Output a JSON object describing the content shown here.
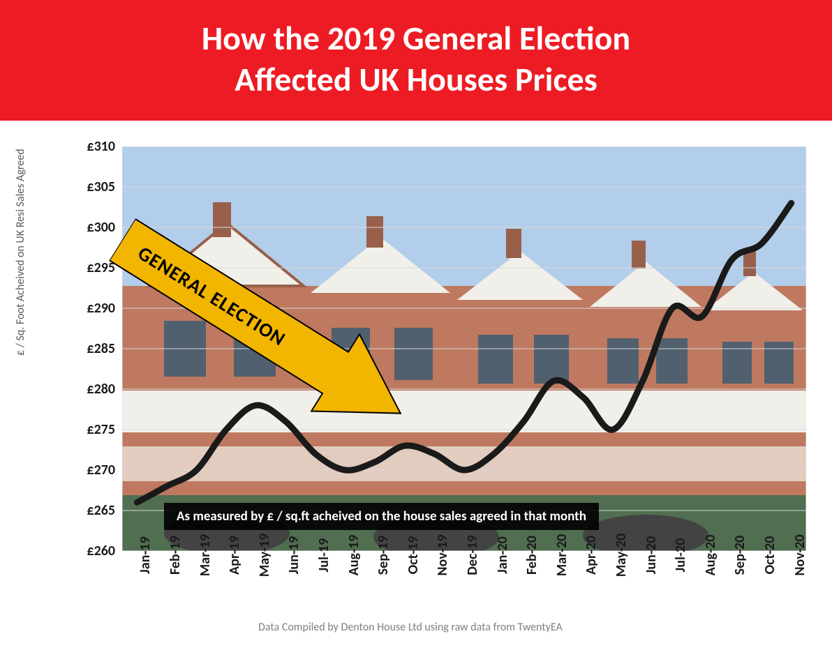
{
  "title": {
    "line1": "How the 2019 General Election",
    "line2": "Affected UK Houses Prices",
    "fontsize": 48,
    "font_weight": "bold",
    "color": "#ffffff",
    "background": "#ed1c24"
  },
  "chart": {
    "type": "line",
    "y_axis_title": "£ / Sq. Foot Acheived on UK Resi Sales Agreed",
    "y_axis_title_fontsize": 16,
    "y_axis_title_color": "#595959",
    "ylim": [
      260,
      310
    ],
    "ytick_step": 5,
    "yticks": [
      260,
      265,
      270,
      275,
      280,
      285,
      290,
      295,
      300,
      305,
      310
    ],
    "ytick_labels": [
      "£260",
      "£265",
      "£270",
      "£275",
      "£280",
      "£285",
      "£290",
      "£295",
      "£300",
      "£305",
      "£310"
    ],
    "ytick_fontsize": 20,
    "ytick_font_weight": "bold",
    "xticks": [
      "Jan-19",
      "Feb-19",
      "Mar-19",
      "Apr-19",
      "May-19",
      "Jun-19",
      "Jul-19",
      "Aug-19",
      "Sep-19",
      "Oct-19",
      "Nov-19",
      "Dec-19",
      "Jan-20",
      "Feb-20",
      "Mar-20",
      "Apr-20",
      "May-20",
      "Jun-20",
      "Jul-20",
      "Aug-20",
      "Sep-20",
      "Oct-20",
      "Nov-20"
    ],
    "xtick_fontsize": 20,
    "xtick_font_weight": "bold",
    "xtick_rotation": -90,
    "values": [
      266,
      268,
      270,
      275,
      278,
      276,
      272,
      270,
      271,
      273,
      272,
      270,
      272,
      276,
      281,
      279,
      275,
      281,
      290,
      289,
      296,
      298,
      303
    ],
    "line_color": "#1a1a1a",
    "line_width": 9,
    "grid_color": "#d9d9d9",
    "grid_on": true,
    "background_photo": true,
    "plot_bg_sky": "#a8c8e8",
    "plot_bg_brick": "#b5674a",
    "plot_bg_white": "#f0ede6"
  },
  "annotation_arrow": {
    "label": "GENERAL ELECTION",
    "label_fontsize": 24,
    "label_font_weight": "bold",
    "label_color": "#000000",
    "fill_color": "#f2b500",
    "stroke_color": "#000000",
    "stroke_width": 2,
    "rotation_deg": 32,
    "points_to_x": "Dec-19",
    "points_to_y": 270
  },
  "footnote": {
    "text": "As measured by £ / sq.ft acheived on the house sales agreed in that month",
    "fontsize": 19,
    "font_weight": "bold",
    "color": "#ffffff",
    "background": "rgba(0,0,0,0.9)"
  },
  "source": {
    "text": "Data Compiled by Denton House Ltd using raw data from TwentyEA",
    "fontsize": 16,
    "color": "#7f7f7f"
  }
}
